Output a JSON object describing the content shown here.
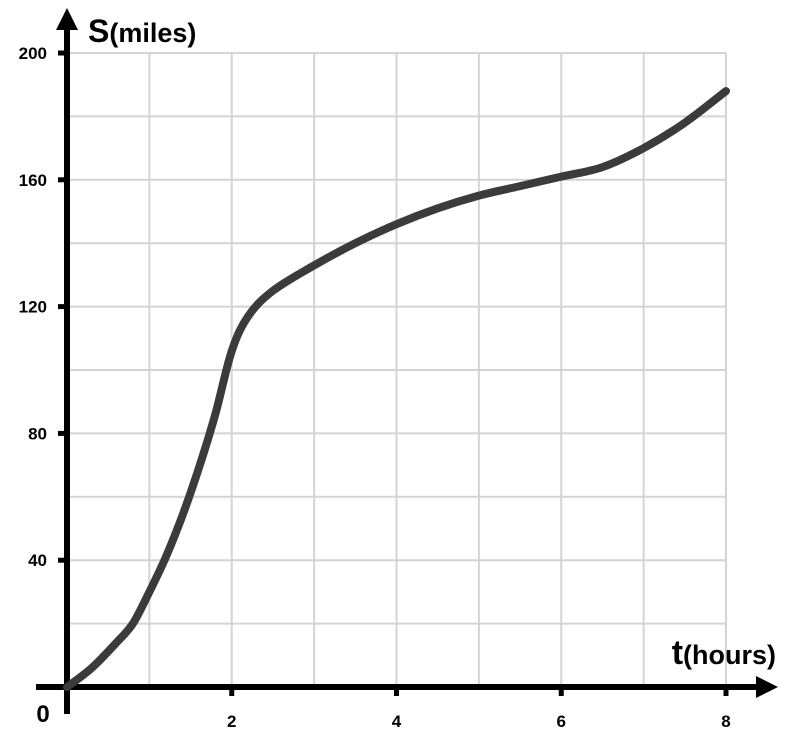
{
  "chart_data": {
    "type": "line",
    "xlabel_main": "t",
    "xlabel_unit": "(hours)",
    "ylabel_main": "S",
    "ylabel_unit": "(miles)",
    "origin_label": "0",
    "xlim": [
      0,
      8
    ],
    "ylim": [
      0,
      200
    ],
    "x_ticks": [
      2,
      4,
      6,
      8
    ],
    "x_tick_labels": [
      "2",
      "4",
      "6",
      "8"
    ],
    "y_ticks": [
      40,
      80,
      120,
      160,
      200
    ],
    "y_tick_labels": [
      "40",
      "80",
      "120",
      "160",
      "200"
    ],
    "grid": true,
    "grid_step_x": 1,
    "grid_step_y": 20,
    "series": [
      {
        "color": "#3b3b3b",
        "x": [
          0,
          0.3,
          0.6,
          0.8,
          1.0,
          1.2,
          1.4,
          1.6,
          1.8,
          2.0,
          2.2,
          2.5,
          3.0,
          3.5,
          4.0,
          4.5,
          5.0,
          5.5,
          6.0,
          6.5,
          7.0,
          7.5,
          8.0
        ],
        "y": [
          0,
          6,
          14,
          20,
          30,
          41,
          54,
          69,
          86,
          106,
          117,
          125,
          133,
          140,
          146,
          151,
          155,
          158,
          161,
          164,
          170,
          178,
          188
        ]
      }
    ]
  }
}
